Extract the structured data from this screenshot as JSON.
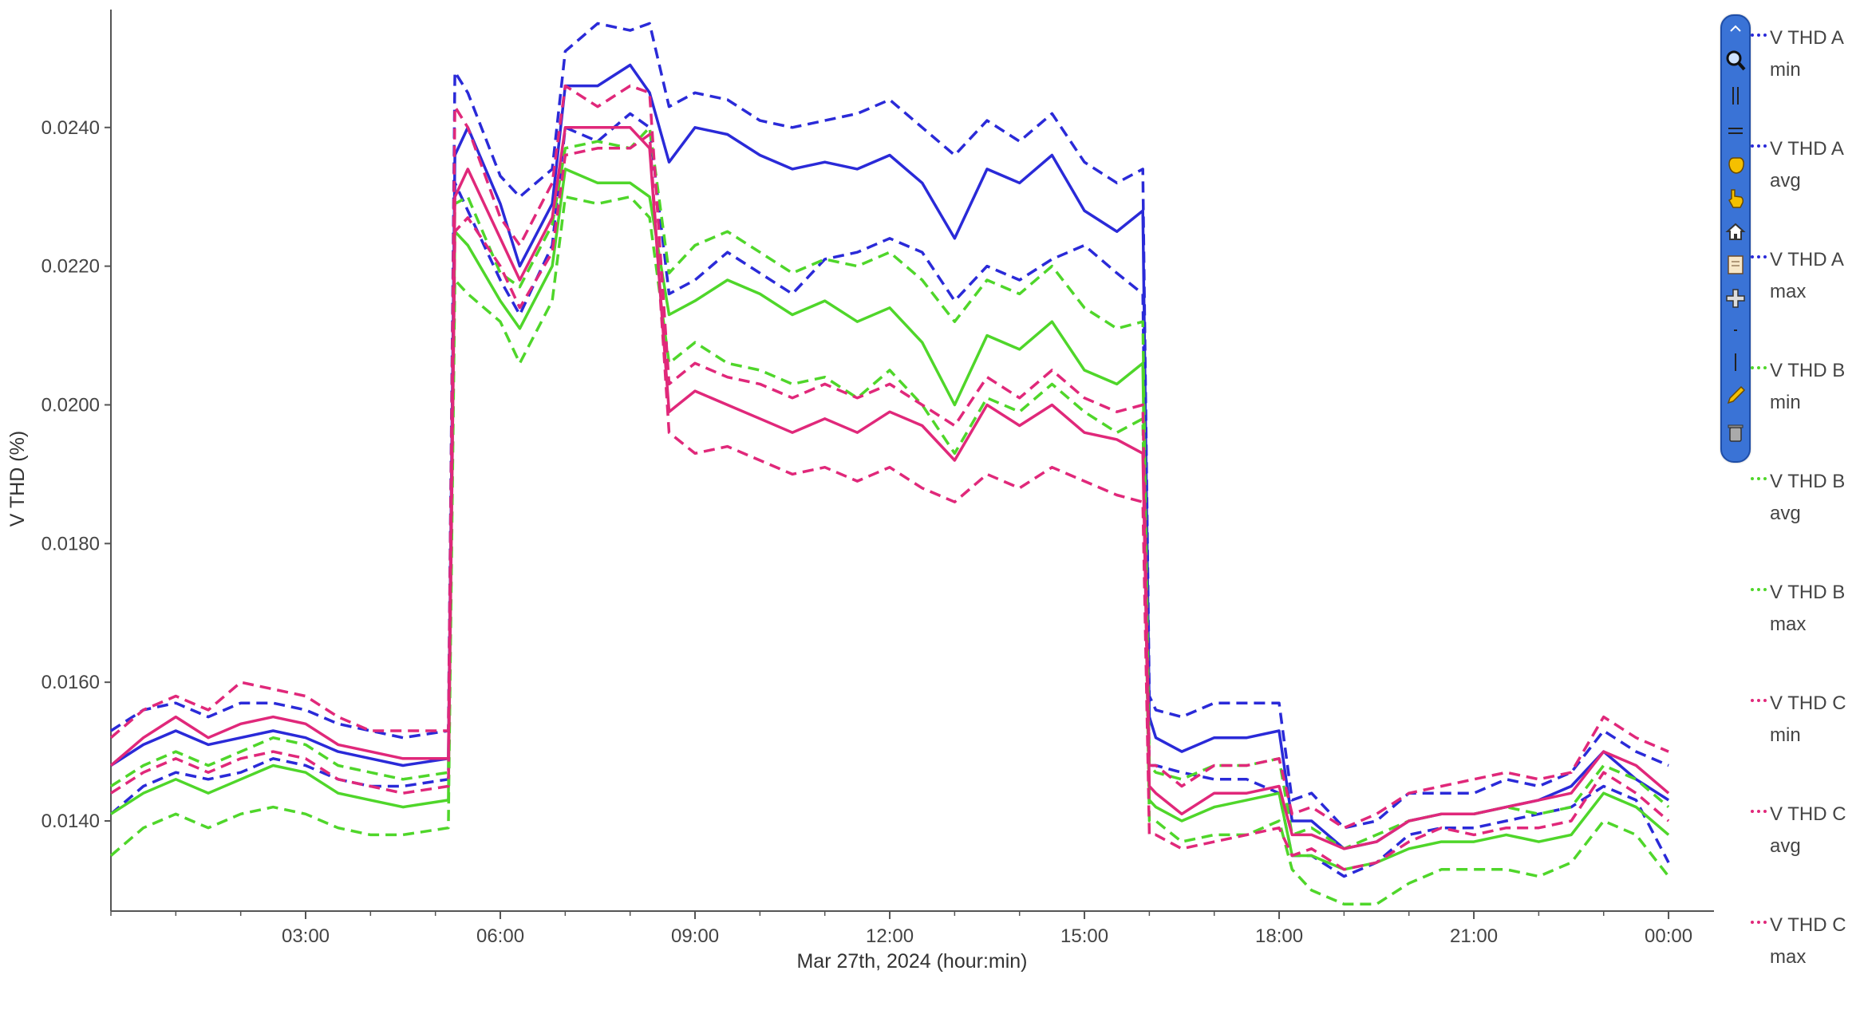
{
  "chart_data": {
    "type": "line",
    "title": "",
    "xlabel": "Mar 27th, 2024 (hour:min)",
    "ylabel": "V THD (%)",
    "ylim": [
      0.0127,
      0.0257
    ],
    "xlim": [
      0,
      24.7
    ],
    "y_ticks": [
      "0.0140",
      "0.0160",
      "0.0180",
      "0.0200",
      "0.0220",
      "0.0240"
    ],
    "y_tick_values": [
      0.014,
      0.016,
      0.018,
      0.02,
      0.022,
      0.024
    ],
    "x_ticks": [
      "03:00",
      "06:00",
      "09:00",
      "12:00",
      "15:00",
      "18:00",
      "21:00",
      "00:00"
    ],
    "x_tick_values": [
      3,
      6,
      9,
      12,
      15,
      18,
      21,
      24
    ],
    "grid": false,
    "legend_position": "right",
    "x_unit": "hours",
    "series": [
      {
        "name": "V THD A min",
        "color": "#2a2ad8",
        "dash": true,
        "x": [
          0,
          0.5,
          1,
          1.5,
          2,
          2.5,
          3,
          3.5,
          4,
          4.5,
          5.2,
          5.3,
          5.5,
          6,
          6.3,
          6.8,
          7,
          7.5,
          8,
          8.3,
          8.6,
          9,
          9.5,
          10,
          10.5,
          11,
          11.5,
          12,
          12.5,
          13,
          13.5,
          14,
          14.5,
          15,
          15.5,
          15.9,
          16,
          16.1,
          16.5,
          17,
          17.5,
          18,
          18.2,
          18.5,
          19,
          19.5,
          20,
          20.5,
          21,
          21.5,
          22,
          22.5,
          23,
          23.5,
          24
        ],
        "values": [
          0.0141,
          0.0145,
          0.0147,
          0.0146,
          0.0147,
          0.0149,
          0.0148,
          0.0146,
          0.0145,
          0.0145,
          0.0146,
          0.0232,
          0.0228,
          0.0218,
          0.0213,
          0.0223,
          0.024,
          0.0238,
          0.0242,
          0.024,
          0.0216,
          0.0218,
          0.0222,
          0.0219,
          0.0216,
          0.0221,
          0.0222,
          0.0224,
          0.0222,
          0.0215,
          0.022,
          0.0218,
          0.0221,
          0.0223,
          0.0219,
          0.0216,
          0.0148,
          0.0148,
          0.0147,
          0.0146,
          0.0146,
          0.0144,
          0.0135,
          0.0135,
          0.0132,
          0.0134,
          0.0138,
          0.0139,
          0.0139,
          0.014,
          0.0141,
          0.0142,
          0.0145,
          0.0143,
          0.0134
        ]
      },
      {
        "name": "V THD A avg",
        "color": "#2a2ad8",
        "dash": false,
        "x": [
          0,
          0.5,
          1,
          1.5,
          2,
          2.5,
          3,
          3.5,
          4,
          4.5,
          5.2,
          5.3,
          5.5,
          6,
          6.3,
          6.8,
          7,
          7.5,
          8,
          8.3,
          8.6,
          9,
          9.5,
          10,
          10.5,
          11,
          11.5,
          12,
          12.5,
          13,
          13.5,
          14,
          14.5,
          15,
          15.5,
          15.9,
          16,
          16.1,
          16.5,
          17,
          17.5,
          18,
          18.2,
          18.5,
          19,
          19.5,
          20,
          20.5,
          21,
          21.5,
          22,
          22.5,
          23,
          23.5,
          24
        ],
        "values": [
          0.0148,
          0.0151,
          0.0153,
          0.0151,
          0.0152,
          0.0153,
          0.0152,
          0.015,
          0.0149,
          0.0148,
          0.0149,
          0.0236,
          0.024,
          0.0229,
          0.022,
          0.0229,
          0.0246,
          0.0246,
          0.0249,
          0.0245,
          0.0235,
          0.024,
          0.0239,
          0.0236,
          0.0234,
          0.0235,
          0.0234,
          0.0236,
          0.0232,
          0.0224,
          0.0234,
          0.0232,
          0.0236,
          0.0228,
          0.0225,
          0.0228,
          0.0155,
          0.0152,
          0.015,
          0.0152,
          0.0152,
          0.0153,
          0.014,
          0.014,
          0.0136,
          0.0137,
          0.014,
          0.0141,
          0.0141,
          0.0142,
          0.0143,
          0.0145,
          0.015,
          0.0146,
          0.0143
        ]
      },
      {
        "name": "V THD A max",
        "color": "#2a2ad8",
        "dash": true,
        "x": [
          0,
          0.5,
          1,
          1.5,
          2,
          2.5,
          3,
          3.5,
          4,
          4.5,
          5.2,
          5.3,
          5.5,
          6,
          6.3,
          6.8,
          7,
          7.5,
          8,
          8.3,
          8.6,
          9,
          9.5,
          10,
          10.5,
          11,
          11.5,
          12,
          12.5,
          13,
          13.5,
          14,
          14.5,
          15,
          15.5,
          15.9,
          16,
          16.1,
          16.5,
          17,
          17.5,
          18,
          18.2,
          18.5,
          19,
          19.5,
          20,
          20.5,
          21,
          21.5,
          22,
          22.5,
          23,
          23.5,
          24
        ],
        "values": [
          0.0153,
          0.0156,
          0.0157,
          0.0155,
          0.0157,
          0.0157,
          0.0156,
          0.0154,
          0.0153,
          0.0152,
          0.0153,
          0.0248,
          0.0245,
          0.0233,
          0.023,
          0.0234,
          0.0251,
          0.0255,
          0.0254,
          0.0255,
          0.0243,
          0.0245,
          0.0244,
          0.0241,
          0.024,
          0.0241,
          0.0242,
          0.0244,
          0.024,
          0.0236,
          0.0241,
          0.0238,
          0.0242,
          0.0235,
          0.0232,
          0.0234,
          0.0158,
          0.0156,
          0.0155,
          0.0157,
          0.0157,
          0.0157,
          0.0143,
          0.0144,
          0.0139,
          0.014,
          0.0144,
          0.0144,
          0.0144,
          0.0146,
          0.0145,
          0.0147,
          0.0153,
          0.015,
          0.0148
        ]
      },
      {
        "name": "V THD B min",
        "color": "#4fd62a",
        "dash": true,
        "x": [
          0,
          0.5,
          1,
          1.5,
          2,
          2.5,
          3,
          3.5,
          4,
          4.5,
          5.2,
          5.3,
          5.5,
          6,
          6.3,
          6.8,
          7,
          7.5,
          8,
          8.3,
          8.6,
          9,
          9.5,
          10,
          10.5,
          11,
          11.5,
          12,
          12.5,
          13,
          13.5,
          14,
          14.5,
          15,
          15.5,
          15.9,
          16,
          16.1,
          16.5,
          17,
          17.5,
          18,
          18.2,
          18.5,
          19,
          19.5,
          20,
          20.5,
          21,
          21.5,
          22,
          22.5,
          23,
          23.5,
          24
        ],
        "values": [
          0.0135,
          0.0139,
          0.0141,
          0.0139,
          0.0141,
          0.0142,
          0.0141,
          0.0139,
          0.0138,
          0.0138,
          0.0139,
          0.0218,
          0.0216,
          0.0212,
          0.0206,
          0.0215,
          0.023,
          0.0229,
          0.023,
          0.0227,
          0.0206,
          0.0209,
          0.0206,
          0.0205,
          0.0203,
          0.0204,
          0.0201,
          0.0205,
          0.02,
          0.0193,
          0.0201,
          0.0199,
          0.0203,
          0.0199,
          0.0196,
          0.0198,
          0.014,
          0.014,
          0.0137,
          0.0138,
          0.0138,
          0.014,
          0.0133,
          0.013,
          0.0128,
          0.0128,
          0.0131,
          0.0133,
          0.0133,
          0.0133,
          0.0132,
          0.0134,
          0.014,
          0.0138,
          0.0132
        ]
      },
      {
        "name": "V THD B avg",
        "color": "#4fd62a",
        "dash": false,
        "x": [
          0,
          0.5,
          1,
          1.5,
          2,
          2.5,
          3,
          3.5,
          4,
          4.5,
          5.2,
          5.3,
          5.5,
          6,
          6.3,
          6.8,
          7,
          7.5,
          8,
          8.3,
          8.6,
          9,
          9.5,
          10,
          10.5,
          11,
          11.5,
          12,
          12.5,
          13,
          13.5,
          14,
          14.5,
          15,
          15.5,
          15.9,
          16,
          16.1,
          16.5,
          17,
          17.5,
          18,
          18.2,
          18.5,
          19,
          19.5,
          20,
          20.5,
          21,
          21.5,
          22,
          22.5,
          23,
          23.5,
          24
        ],
        "values": [
          0.0141,
          0.0144,
          0.0146,
          0.0144,
          0.0146,
          0.0148,
          0.0147,
          0.0144,
          0.0143,
          0.0142,
          0.0143,
          0.0225,
          0.0223,
          0.0215,
          0.0211,
          0.022,
          0.0234,
          0.0232,
          0.0232,
          0.023,
          0.0213,
          0.0215,
          0.0218,
          0.0216,
          0.0213,
          0.0215,
          0.0212,
          0.0214,
          0.0209,
          0.02,
          0.021,
          0.0208,
          0.0212,
          0.0205,
          0.0203,
          0.0206,
          0.0143,
          0.0142,
          0.014,
          0.0142,
          0.0143,
          0.0144,
          0.0135,
          0.0135,
          0.0133,
          0.0134,
          0.0136,
          0.0137,
          0.0137,
          0.0138,
          0.0137,
          0.0138,
          0.0144,
          0.0142,
          0.0138
        ]
      },
      {
        "name": "V THD B max",
        "color": "#4fd62a",
        "dash": true,
        "x": [
          0,
          0.5,
          1,
          1.5,
          2,
          2.5,
          3,
          3.5,
          4,
          4.5,
          5.2,
          5.3,
          5.5,
          6,
          6.3,
          6.8,
          7,
          7.5,
          8,
          8.3,
          8.6,
          9,
          9.5,
          10,
          10.5,
          11,
          11.5,
          12,
          12.5,
          13,
          13.5,
          14,
          14.5,
          15,
          15.5,
          15.9,
          16,
          16.1,
          16.5,
          17,
          17.5,
          18,
          18.2,
          18.5,
          19,
          19.5,
          20,
          20.5,
          21,
          21.5,
          22,
          22.5,
          23,
          23.5,
          24
        ],
        "values": [
          0.0145,
          0.0148,
          0.015,
          0.0148,
          0.015,
          0.0152,
          0.0151,
          0.0148,
          0.0147,
          0.0146,
          0.0147,
          0.0229,
          0.023,
          0.0219,
          0.0217,
          0.0226,
          0.0237,
          0.0238,
          0.0237,
          0.024,
          0.0219,
          0.0223,
          0.0225,
          0.0222,
          0.0219,
          0.0221,
          0.022,
          0.0222,
          0.0218,
          0.0212,
          0.0218,
          0.0216,
          0.022,
          0.0214,
          0.0211,
          0.0212,
          0.0148,
          0.0147,
          0.0146,
          0.0148,
          0.0148,
          0.0149,
          0.0138,
          0.0139,
          0.0136,
          0.0138,
          0.014,
          0.0141,
          0.0141,
          0.0142,
          0.0141,
          0.0142,
          0.0148,
          0.0146,
          0.0142
        ]
      },
      {
        "name": "V THD C min",
        "color": "#e0287a",
        "dash": true,
        "x": [
          0,
          0.5,
          1,
          1.5,
          2,
          2.5,
          3,
          3.5,
          4,
          4.5,
          5.2,
          5.3,
          5.5,
          6,
          6.3,
          6.8,
          7,
          7.5,
          8,
          8.3,
          8.6,
          9,
          9.5,
          10,
          10.5,
          11,
          11.5,
          12,
          12.5,
          13,
          13.5,
          14,
          14.5,
          15,
          15.5,
          15.9,
          16,
          16.1,
          16.5,
          17,
          17.5,
          18,
          18.2,
          18.5,
          19,
          19.5,
          20,
          20.5,
          21,
          21.5,
          22,
          22.5,
          23,
          23.5,
          24
        ],
        "values": [
          0.0144,
          0.0147,
          0.0149,
          0.0147,
          0.0149,
          0.015,
          0.0149,
          0.0146,
          0.0145,
          0.0144,
          0.0145,
          0.0225,
          0.0227,
          0.022,
          0.0214,
          0.0222,
          0.0236,
          0.0237,
          0.0237,
          0.0239,
          0.0196,
          0.0193,
          0.0194,
          0.0192,
          0.019,
          0.0191,
          0.0189,
          0.0191,
          0.0188,
          0.0186,
          0.019,
          0.0188,
          0.0191,
          0.0189,
          0.0187,
          0.0186,
          0.0138,
          0.0138,
          0.0136,
          0.0137,
          0.0138,
          0.0139,
          0.0135,
          0.0136,
          0.0133,
          0.0134,
          0.0137,
          0.0139,
          0.0138,
          0.0139,
          0.0139,
          0.014,
          0.0147,
          0.0144,
          0.014
        ]
      },
      {
        "name": "V THD C avg",
        "color": "#e0287a",
        "dash": false,
        "x": [
          0,
          0.5,
          1,
          1.5,
          2,
          2.5,
          3,
          3.5,
          4,
          4.5,
          5.2,
          5.3,
          5.5,
          6,
          6.3,
          6.8,
          7,
          7.5,
          8,
          8.3,
          8.6,
          9,
          9.5,
          10,
          10.5,
          11,
          11.5,
          12,
          12.5,
          13,
          13.5,
          14,
          14.5,
          15,
          15.5,
          15.9,
          16,
          16.1,
          16.5,
          17,
          17.5,
          18,
          18.2,
          18.5,
          19,
          19.5,
          20,
          20.5,
          21,
          21.5,
          22,
          22.5,
          23,
          23.5,
          24
        ],
        "values": [
          0.0148,
          0.0152,
          0.0155,
          0.0152,
          0.0154,
          0.0155,
          0.0154,
          0.0151,
          0.015,
          0.0149,
          0.0149,
          0.023,
          0.0234,
          0.0224,
          0.0218,
          0.0227,
          0.024,
          0.024,
          0.024,
          0.0237,
          0.0199,
          0.0202,
          0.02,
          0.0198,
          0.0196,
          0.0198,
          0.0196,
          0.0199,
          0.0197,
          0.0192,
          0.02,
          0.0197,
          0.02,
          0.0196,
          0.0195,
          0.0193,
          0.0145,
          0.0144,
          0.0141,
          0.0144,
          0.0144,
          0.0145,
          0.0138,
          0.0138,
          0.0136,
          0.0137,
          0.014,
          0.0141,
          0.0141,
          0.0142,
          0.0143,
          0.0144,
          0.015,
          0.0148,
          0.0144
        ]
      },
      {
        "name": "V THD C max",
        "color": "#e0287a",
        "dash": true,
        "x": [
          0,
          0.5,
          1,
          1.5,
          2,
          2.5,
          3,
          3.5,
          4,
          4.5,
          5.2,
          5.3,
          5.5,
          6,
          6.3,
          6.8,
          7,
          7.5,
          8,
          8.3,
          8.6,
          9,
          9.5,
          10,
          10.5,
          11,
          11.5,
          12,
          12.5,
          13,
          13.5,
          14,
          14.5,
          15,
          15.5,
          15.9,
          16,
          16.1,
          16.5,
          17,
          17.5,
          18,
          18.2,
          18.5,
          19,
          19.5,
          20,
          20.5,
          21,
          21.5,
          22,
          22.5,
          23,
          23.5,
          24
        ],
        "values": [
          0.0152,
          0.0156,
          0.0158,
          0.0156,
          0.016,
          0.0159,
          0.0158,
          0.0155,
          0.0153,
          0.0153,
          0.0153,
          0.0243,
          0.024,
          0.0227,
          0.0223,
          0.0232,
          0.0246,
          0.0243,
          0.0246,
          0.0245,
          0.0203,
          0.0206,
          0.0204,
          0.0203,
          0.0201,
          0.0203,
          0.0201,
          0.0203,
          0.02,
          0.0197,
          0.0204,
          0.0201,
          0.0205,
          0.0201,
          0.0199,
          0.02,
          0.0148,
          0.0148,
          0.0145,
          0.0148,
          0.0148,
          0.0149,
          0.0141,
          0.0142,
          0.0139,
          0.0141,
          0.0144,
          0.0145,
          0.0146,
          0.0147,
          0.0146,
          0.0147,
          0.0155,
          0.0152,
          0.015
        ]
      }
    ]
  },
  "legend": {
    "items": [
      {
        "line1": "V THD A",
        "line2": "min",
        "color": "#2a2ad8"
      },
      {
        "line1": "V THD A",
        "line2": "avg",
        "color": "#2a2ad8"
      },
      {
        "line1": "V THD A",
        "line2": "max",
        "color": "#2a2ad8"
      },
      {
        "line1": "V THD B",
        "line2": "min",
        "color": "#4fd62a"
      },
      {
        "line1": "V THD B",
        "line2": "avg",
        "color": "#4fd62a"
      },
      {
        "line1": "V THD B",
        "line2": "max",
        "color": "#4fd62a"
      },
      {
        "line1": "V THD C",
        "line2": "min",
        "color": "#e0287a"
      },
      {
        "line1": "V THD C",
        "line2": "avg",
        "color": "#e0287a"
      },
      {
        "line1": "V THD C",
        "line2": "max",
        "color": "#e0287a"
      }
    ]
  },
  "toolbar": {
    "tools": [
      "collapse-icon",
      "zoom-icon",
      "vertical-lines-icon",
      "horizontal-lines-icon",
      "pan-hand-icon",
      "pointer-hand-icon",
      "home-icon",
      "notes-icon",
      "crosshair-icon",
      "minus-icon",
      "vertical-line-icon",
      "pencil-icon",
      "trash-icon"
    ]
  }
}
